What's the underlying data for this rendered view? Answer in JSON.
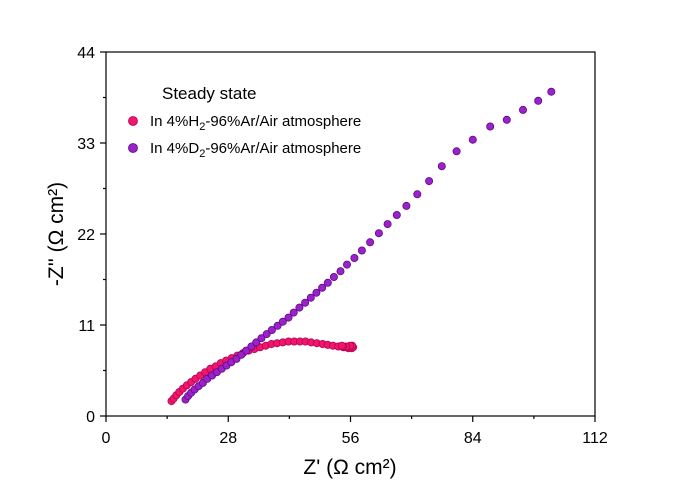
{
  "chart_data": {
    "type": "scatter",
    "xlabel": "Z' (Ω cm²)",
    "ylabel": "-Z'' (Ω cm²)",
    "xlim": [
      0,
      112
    ],
    "ylim": [
      0,
      44
    ],
    "xticks": [
      0,
      28,
      56,
      84,
      112
    ],
    "yticks": [
      0,
      11,
      22,
      33,
      44
    ],
    "xtick_labels": [
      "0",
      "28",
      "56",
      "84",
      "112"
    ],
    "ytick_labels": [
      "0",
      "11",
      "22",
      "33",
      "44"
    ],
    "grid": false,
    "legend_placement": "top-left",
    "legend_title": "Steady state",
    "series": [
      {
        "name": "In 4%H2-96%Ar/Air atmosphere",
        "label_parts": [
          "In 4%H",
          "2",
          "-96%Ar/Air atmosphere"
        ],
        "color": "#f0166e",
        "edge_color": "#b5004f",
        "x": [
          15.0,
          15.5,
          16.1,
          16.8,
          17.6,
          18.5,
          19.5,
          20.5,
          21.6,
          22.7,
          23.9,
          25.1,
          26.3,
          27.5,
          28.8,
          30.1,
          31.4,
          32.7,
          34.0,
          35.3,
          36.6,
          37.9,
          39.2,
          40.5,
          41.8,
          43.1,
          44.4,
          45.7,
          47.0,
          48.3,
          49.6,
          50.8,
          52.0,
          53.2,
          54.4,
          55.5,
          56.3,
          56.6,
          56.4,
          55.9,
          55.0,
          54.3,
          54.0
        ],
        "y": [
          1.8,
          2.1,
          2.5,
          2.9,
          3.3,
          3.7,
          4.1,
          4.5,
          4.9,
          5.3,
          5.7,
          6.0,
          6.4,
          6.7,
          7.0,
          7.3,
          7.6,
          7.9,
          8.1,
          8.3,
          8.5,
          8.7,
          8.8,
          8.9,
          9.0,
          9.0,
          9.0,
          9.0,
          8.9,
          8.8,
          8.7,
          8.6,
          8.5,
          8.4,
          8.3,
          8.2,
          8.2,
          8.3,
          8.5,
          8.5,
          8.4,
          8.4,
          8.5
        ]
      },
      {
        "name": "In 4%D2-96%Ar/Air atmosphere",
        "label_parts": [
          "In 4%D",
          "2",
          "-96%Ar/Air atmosphere"
        ],
        "color": "#9a22c8",
        "edge_color": "#5e0a88",
        "x": [
          18.2,
          18.8,
          19.5,
          20.3,
          21.2,
          22.2,
          23.2,
          24.3,
          25.4,
          26.5,
          27.6,
          28.7,
          29.9,
          31.0,
          32.1,
          33.3,
          34.4,
          35.6,
          36.8,
          38.0,
          39.3,
          40.5,
          41.8,
          43.0,
          44.3,
          45.6,
          46.9,
          48.2,
          49.5,
          50.8,
          52.2,
          53.7,
          55.2,
          56.9,
          58.6,
          60.5,
          62.5,
          64.5,
          66.6,
          68.8,
          71.3,
          74.0,
          76.9,
          80.3,
          84.0,
          88.0,
          91.8,
          95.5,
          99.0,
          102.0
        ],
        "y": [
          2.0,
          2.4,
          2.8,
          3.2,
          3.6,
          4.0,
          4.5,
          4.9,
          5.3,
          5.7,
          6.1,
          6.5,
          6.9,
          7.4,
          7.9,
          8.4,
          8.9,
          9.4,
          9.9,
          10.4,
          10.9,
          11.4,
          11.9,
          12.5,
          13.1,
          13.7,
          14.3,
          14.9,
          15.5,
          16.1,
          16.8,
          17.5,
          18.3,
          19.1,
          20.0,
          21.0,
          22.1,
          23.2,
          24.3,
          25.4,
          26.8,
          28.4,
          30.2,
          32.0,
          33.4,
          35.0,
          35.8,
          37.0,
          38.1,
          39.2
        ]
      }
    ]
  }
}
